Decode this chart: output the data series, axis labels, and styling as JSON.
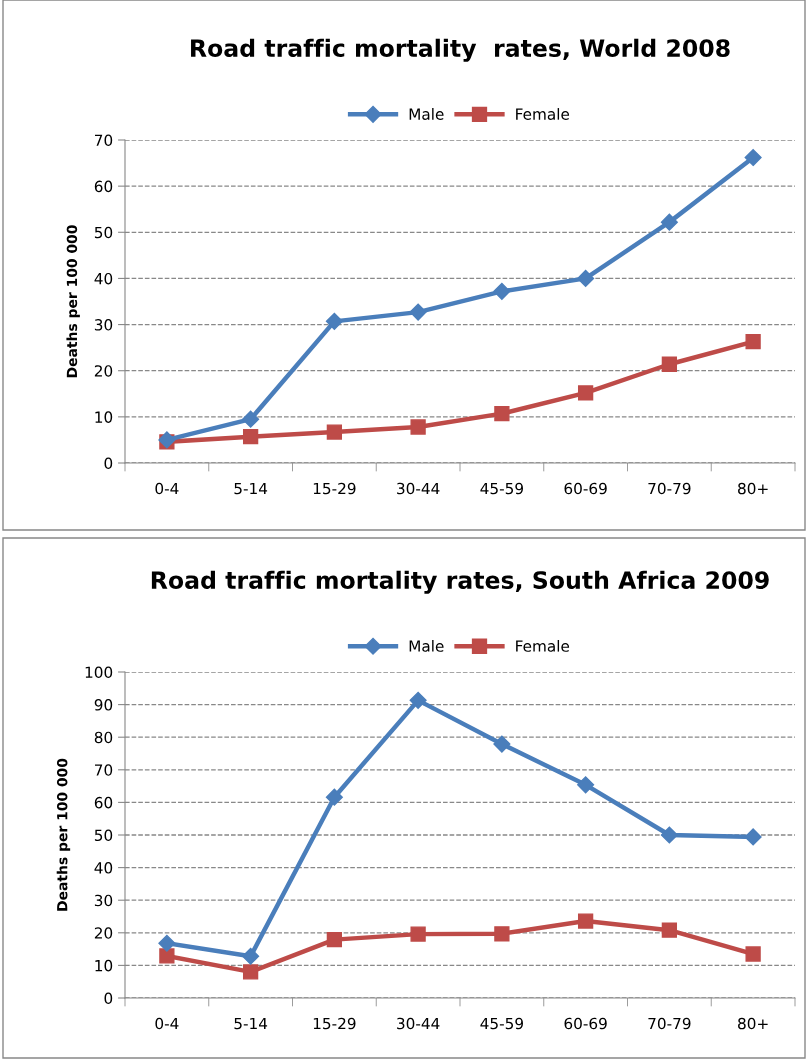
{
  "chart_data": [
    {
      "type": "line",
      "title": "Road traffic mortality  rates, World 2008",
      "ylabel": "Deaths per 100 000",
      "categories": [
        "0-4",
        "5-14",
        "15-29",
        "30-44",
        "45-59",
        "60-69",
        "70-79",
        "80+"
      ],
      "series": [
        {
          "name": "Male",
          "color": "#4a7ebb",
          "marker": "diamond",
          "values": [
            5,
            9.5,
            30.7,
            32.7,
            37.2,
            40,
            52.2,
            66.2
          ]
        },
        {
          "name": "Female",
          "color": "#be4b48",
          "marker": "square",
          "values": [
            4.6,
            5.7,
            6.7,
            7.8,
            10.7,
            15.2,
            21.4,
            26.3
          ]
        }
      ],
      "ylim": [
        0,
        70
      ],
      "yticks": [
        0,
        10,
        20,
        30,
        40,
        50,
        60,
        70
      ],
      "grid": "y",
      "legend": "top",
      "line_style": "solid"
    },
    {
      "type": "line",
      "title": "Road traffic mortality rates, South Africa 2009",
      "ylabel": "Deaths per 100 000",
      "categories": [
        "0-4",
        "5-14",
        "15-29",
        "30-44",
        "45-59",
        "60-69",
        "70-79",
        "80+"
      ],
      "series": [
        {
          "name": "Male",
          "color": "#4a7ebb",
          "marker": "diamond",
          "values": [
            16.8,
            12.8,
            61.6,
            91.3,
            77.9,
            65.4,
            50,
            49.4
          ]
        },
        {
          "name": "Female",
          "color": "#be4b48",
          "marker": "square",
          "values": [
            12.9,
            8,
            17.9,
            19.6,
            19.7,
            23.6,
            20.8,
            13.5
          ]
        }
      ],
      "ylim": [
        0,
        100
      ],
      "yticks": [
        0,
        10,
        20,
        30,
        40,
        50,
        60,
        70,
        80,
        90,
        100
      ],
      "grid": "y",
      "legend": "top",
      "line_style": "solid"
    }
  ]
}
